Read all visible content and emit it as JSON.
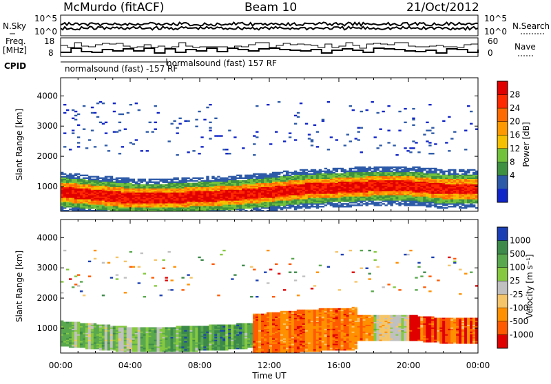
{
  "header": {
    "station": "McMurdo (fitACF)",
    "beam": "Beam 10",
    "date": "21/Oct/2012"
  },
  "panels": {
    "nsky_label": "N.Sky",
    "nsky_ticks": [
      "10^5",
      "10^0"
    ],
    "nsearch_label": "N.Search",
    "nsearch_ticks": [
      "10^5",
      "10^0"
    ],
    "freq_label_1": "Freq.",
    "freq_label_2": "[MHz]",
    "freq_ticks": [
      "18",
      "8"
    ],
    "nave_label": "Nave",
    "nave_ticks": [
      "60",
      "0"
    ],
    "cpid_label": "CPID",
    "cpid_entries": [
      "normalsound (fast) -157 RF",
      "normalsound (fast) 157 RF"
    ]
  },
  "chart_data": [
    {
      "type": "heatmap",
      "quantity": "Power",
      "unit": "dB",
      "ylabel": "Slant Range [km]",
      "xlabel": "Time UT",
      "ylim": [
        180,
        4600
      ],
      "x_ticks": [
        "00:00",
        "04:00",
        "08:00",
        "12:00",
        "16:00",
        "20:00",
        "00:00"
      ],
      "y_ticks": [
        1000,
        2000,
        3000,
        4000
      ],
      "colorbar": {
        "label": "Power [dB]",
        "ticks": [
          "28",
          "24",
          "20",
          "16",
          "12",
          "8",
          "4"
        ],
        "colors": [
          "#e00000",
          "#ff2a00",
          "#ff6a00",
          "#ff9900",
          "#f5c000",
          "#72c23c",
          "#3e9140",
          "#2d5aa8",
          "#1025c8"
        ]
      },
      "approx_band_center_km": [
        800,
        700,
        600,
        600,
        650,
        700,
        800,
        900,
        950,
        1000,
        1000,
        900
      ],
      "approx_band_center_hours": [
        0,
        2,
        4,
        6,
        8,
        10,
        12,
        14,
        16,
        18,
        20,
        22
      ]
    },
    {
      "type": "heatmap",
      "quantity": "Velocity",
      "unit": "m s^-1",
      "ylabel": "Slant Range [km]",
      "xlabel": "Time UT",
      "ylim": [
        180,
        4600
      ],
      "x_ticks": [
        "00:00",
        "04:00",
        "08:00",
        "12:00",
        "16:00",
        "20:00",
        "00:00"
      ],
      "y_ticks": [
        1000,
        2000,
        3000,
        4000
      ],
      "colorbar": {
        "label": "Velocity [m s⁻¹]",
        "ticks": [
          "1000",
          "500",
          "100",
          "25",
          "-25",
          "-100",
          "-500",
          "-1000"
        ],
        "colors": [
          "#1a3fb5",
          "#3d8a4a",
          "#5aa84e",
          "#86c940",
          "#c0c0c0",
          "#f5c56a",
          "#ff9000",
          "#ff5a00",
          "#e00000"
        ]
      }
    }
  ]
}
